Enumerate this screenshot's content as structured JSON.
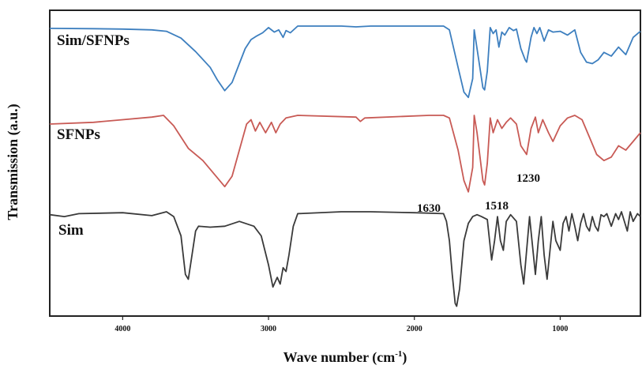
{
  "chart_data": {
    "type": "line",
    "xlabel_text": "Wave number (cm",
    "xlabel_sup": "-1",
    "xlabel_close": ")",
    "ylabel": "Transmission (a.u.)",
    "xlim": [
      4500,
      450
    ],
    "x_reversed": true,
    "x_ticks": [
      {
        "value": 4000,
        "label": "4000"
      },
      {
        "value": 3000,
        "label": "3000"
      },
      {
        "value": 2000,
        "label": "2000"
      },
      {
        "value": 1000,
        "label": "1000"
      }
    ],
    "y_ticks_labeled": false,
    "grid": false,
    "legend": "inline labels",
    "series": [
      {
        "name": "Sim/SFNPs",
        "color": "#3d7fbf",
        "points": [
          [
            4500,
            0.03
          ],
          [
            4200,
            0.035
          ],
          [
            4000,
            0.04
          ],
          [
            3800,
            0.05
          ],
          [
            3700,
            0.07
          ],
          [
            3600,
            0.16
          ],
          [
            3500,
            0.34
          ],
          [
            3400,
            0.55
          ],
          [
            3350,
            0.72
          ],
          [
            3300,
            0.86
          ],
          [
            3250,
            0.75
          ],
          [
            3200,
            0.5
          ],
          [
            3160,
            0.3
          ],
          [
            3120,
            0.18
          ],
          [
            3080,
            0.13
          ],
          [
            3040,
            0.09
          ],
          [
            3000,
            0.02
          ],
          [
            2960,
            0.08
          ],
          [
            2930,
            0.05
          ],
          [
            2900,
            0.15
          ],
          [
            2880,
            0.06
          ],
          [
            2850,
            0.09
          ],
          [
            2800,
            0.0
          ],
          [
            2500,
            0.0
          ],
          [
            2400,
            0.01
          ],
          [
            2300,
            0.0
          ],
          [
            1900,
            0.0
          ],
          [
            1800,
            0.0
          ],
          [
            1760,
            0.05
          ],
          [
            1700,
            0.55
          ],
          [
            1660,
            0.88
          ],
          [
            1630,
            0.95
          ],
          [
            1600,
            0.7
          ],
          [
            1590,
            0.05
          ],
          [
            1570,
            0.3
          ],
          [
            1530,
            0.82
          ],
          [
            1518,
            0.85
          ],
          [
            1500,
            0.6
          ],
          [
            1480,
            0.02
          ],
          [
            1460,
            0.1
          ],
          [
            1440,
            0.05
          ],
          [
            1420,
            0.28
          ],
          [
            1400,
            0.08
          ],
          [
            1380,
            0.12
          ],
          [
            1350,
            0.02
          ],
          [
            1320,
            0.06
          ],
          [
            1300,
            0.04
          ],
          [
            1270,
            0.3
          ],
          [
            1240,
            0.45
          ],
          [
            1230,
            0.48
          ],
          [
            1200,
            0.15
          ],
          [
            1180,
            0.02
          ],
          [
            1160,
            0.1
          ],
          [
            1140,
            0.02
          ],
          [
            1110,
            0.2
          ],
          [
            1080,
            0.05
          ],
          [
            1050,
            0.08
          ],
          [
            1000,
            0.07
          ],
          [
            950,
            0.12
          ],
          [
            900,
            0.05
          ],
          [
            860,
            0.35
          ],
          [
            820,
            0.48
          ],
          [
            780,
            0.5
          ],
          [
            740,
            0.45
          ],
          [
            700,
            0.35
          ],
          [
            650,
            0.4
          ],
          [
            600,
            0.28
          ],
          [
            550,
            0.38
          ],
          [
            500,
            0.15
          ],
          [
            450,
            0.07
          ]
        ]
      },
      {
        "name": "SFNPs",
        "color": "#c85a55",
        "points": [
          [
            4500,
            0.1
          ],
          [
            4200,
            0.08
          ],
          [
            4000,
            0.05
          ],
          [
            3800,
            0.02
          ],
          [
            3720,
            0.0
          ],
          [
            3650,
            0.12
          ],
          [
            3550,
            0.38
          ],
          [
            3450,
            0.52
          ],
          [
            3350,
            0.72
          ],
          [
            3300,
            0.82
          ],
          [
            3250,
            0.7
          ],
          [
            3200,
            0.4
          ],
          [
            3150,
            0.1
          ],
          [
            3120,
            0.05
          ],
          [
            3090,
            0.18
          ],
          [
            3060,
            0.08
          ],
          [
            3020,
            0.2
          ],
          [
            2980,
            0.08
          ],
          [
            2950,
            0.2
          ],
          [
            2920,
            0.1
          ],
          [
            2880,
            0.03
          ],
          [
            2800,
            0.0
          ],
          [
            2400,
            0.02
          ],
          [
            2370,
            0.07
          ],
          [
            2340,
            0.03
          ],
          [
            1900,
            0.0
          ],
          [
            1800,
            0.0
          ],
          [
            1760,
            0.03
          ],
          [
            1700,
            0.4
          ],
          [
            1660,
            0.75
          ],
          [
            1630,
            0.88
          ],
          [
            1600,
            0.6
          ],
          [
            1590,
            0.0
          ],
          [
            1570,
            0.2
          ],
          [
            1530,
            0.75
          ],
          [
            1518,
            0.8
          ],
          [
            1500,
            0.55
          ],
          [
            1480,
            0.03
          ],
          [
            1460,
            0.2
          ],
          [
            1430,
            0.05
          ],
          [
            1400,
            0.15
          ],
          [
            1370,
            0.08
          ],
          [
            1340,
            0.03
          ],
          [
            1300,
            0.1
          ],
          [
            1270,
            0.35
          ],
          [
            1230,
            0.45
          ],
          [
            1200,
            0.15
          ],
          [
            1170,
            0.02
          ],
          [
            1150,
            0.2
          ],
          [
            1120,
            0.05
          ],
          [
            1080,
            0.2
          ],
          [
            1050,
            0.3
          ],
          [
            1000,
            0.12
          ],
          [
            950,
            0.03
          ],
          [
            900,
            0.0
          ],
          [
            850,
            0.05
          ],
          [
            800,
            0.25
          ],
          [
            750,
            0.45
          ],
          [
            700,
            0.52
          ],
          [
            650,
            0.48
          ],
          [
            600,
            0.35
          ],
          [
            550,
            0.4
          ],
          [
            500,
            0.3
          ],
          [
            450,
            0.2
          ]
        ]
      },
      {
        "name": "Sim",
        "color": "#3a3a3a",
        "points": [
          [
            4500,
            0.03
          ],
          [
            4400,
            0.05
          ],
          [
            4300,
            0.02
          ],
          [
            4000,
            0.01
          ],
          [
            3800,
            0.04
          ],
          [
            3700,
            0.0
          ],
          [
            3650,
            0.05
          ],
          [
            3600,
            0.25
          ],
          [
            3570,
            0.65
          ],
          [
            3550,
            0.7
          ],
          [
            3530,
            0.5
          ],
          [
            3500,
            0.2
          ],
          [
            3480,
            0.15
          ],
          [
            3400,
            0.16
          ],
          [
            3300,
            0.15
          ],
          [
            3200,
            0.1
          ],
          [
            3100,
            0.15
          ],
          [
            3050,
            0.25
          ],
          [
            3000,
            0.55
          ],
          [
            2970,
            0.78
          ],
          [
            2940,
            0.68
          ],
          [
            2920,
            0.75
          ],
          [
            2900,
            0.58
          ],
          [
            2880,
            0.62
          ],
          [
            2860,
            0.45
          ],
          [
            2830,
            0.15
          ],
          [
            2800,
            0.02
          ],
          [
            2500,
            0.0
          ],
          [
            2300,
            0.0
          ],
          [
            2000,
            0.01
          ],
          [
            1800,
            0.02
          ],
          [
            1780,
            0.1
          ],
          [
            1760,
            0.3
          ],
          [
            1740,
            0.65
          ],
          [
            1720,
            0.95
          ],
          [
            1710,
            0.98
          ],
          [
            1690,
            0.8
          ],
          [
            1660,
            0.3
          ],
          [
            1630,
            0.12
          ],
          [
            1600,
            0.05
          ],
          [
            1570,
            0.03
          ],
          [
            1540,
            0.05
          ],
          [
            1500,
            0.08
          ],
          [
            1470,
            0.5
          ],
          [
            1450,
            0.3
          ],
          [
            1430,
            0.05
          ],
          [
            1410,
            0.3
          ],
          [
            1390,
            0.4
          ],
          [
            1370,
            0.1
          ],
          [
            1340,
            0.03
          ],
          [
            1300,
            0.1
          ],
          [
            1270,
            0.55
          ],
          [
            1250,
            0.75
          ],
          [
            1230,
            0.4
          ],
          [
            1210,
            0.05
          ],
          [
            1190,
            0.35
          ],
          [
            1170,
            0.65
          ],
          [
            1150,
            0.3
          ],
          [
            1130,
            0.05
          ],
          [
            1110,
            0.45
          ],
          [
            1090,
            0.7
          ],
          [
            1070,
            0.4
          ],
          [
            1050,
            0.1
          ],
          [
            1030,
            0.3
          ],
          [
            1000,
            0.4
          ],
          [
            980,
            0.12
          ],
          [
            960,
            0.05
          ],
          [
            940,
            0.2
          ],
          [
            920,
            0.02
          ],
          [
            900,
            0.15
          ],
          [
            880,
            0.3
          ],
          [
            860,
            0.12
          ],
          [
            840,
            0.02
          ],
          [
            820,
            0.15
          ],
          [
            800,
            0.2
          ],
          [
            780,
            0.05
          ],
          [
            760,
            0.15
          ],
          [
            740,
            0.2
          ],
          [
            720,
            0.03
          ],
          [
            700,
            0.05
          ],
          [
            680,
            0.02
          ],
          [
            650,
            0.15
          ],
          [
            620,
            0.02
          ],
          [
            600,
            0.08
          ],
          [
            580,
            0.0
          ],
          [
            560,
            0.1
          ],
          [
            540,
            0.2
          ],
          [
            520,
            0.0
          ],
          [
            500,
            0.1
          ],
          [
            470,
            0.02
          ],
          [
            450,
            0.05
          ]
        ]
      }
    ],
    "annotations": [
      {
        "text": "1630",
        "x": 1630,
        "series": "SFNPs"
      },
      {
        "text": "1518",
        "x": 1518,
        "series": "SFNPs"
      },
      {
        "text": "1230",
        "x": 1230,
        "series": "SFNPs"
      }
    ]
  }
}
